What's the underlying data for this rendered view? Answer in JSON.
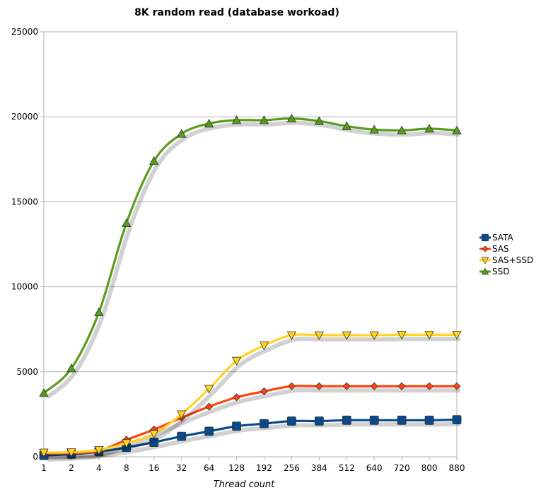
{
  "chart_data": {
    "type": "line",
    "title": "8K random read (database workoad)",
    "xlabel": "Thread count",
    "ylabel": "",
    "categories": [
      "1",
      "2",
      "4",
      "8",
      "16",
      "32",
      "64",
      "128",
      "192",
      "256",
      "384",
      "512",
      "640",
      "720",
      "800",
      "880"
    ],
    "ylim": [
      0,
      25000
    ],
    "yticks": [
      0,
      5000,
      10000,
      15000,
      20000,
      25000
    ],
    "grid": "horizontal",
    "legend_position": "right",
    "series": [
      {
        "name": "SATA",
        "color": "#0a4a8a",
        "marker": "square",
        "values": [
          80,
          150,
          300,
          550,
          850,
          1200,
          1500,
          1800,
          1950,
          2100,
          2100,
          2150,
          2150,
          2150,
          2150,
          2180
        ]
      },
      {
        "name": "SAS",
        "color": "#ff420e",
        "marker": "diamond",
        "values": [
          200,
          220,
          350,
          1000,
          1600,
          2300,
          2950,
          3500,
          3850,
          4150,
          4150,
          4150,
          4150,
          4150,
          4150,
          4150
        ]
      },
      {
        "name": "SAS+SSD",
        "color": "#ffd320",
        "marker": "triangle-down",
        "values": [
          250,
          270,
          400,
          800,
          1350,
          2500,
          4000,
          5650,
          6550,
          7150,
          7150,
          7150,
          7150,
          7180,
          7180,
          7180
        ]
      },
      {
        "name": "SSD",
        "color": "#579d1c",
        "marker": "triangle-up",
        "values": [
          3750,
          5200,
          8500,
          13750,
          17400,
          19000,
          19600,
          19800,
          19800,
          19900,
          19750,
          19450,
          19250,
          19200,
          19300,
          19200
        ]
      }
    ]
  }
}
